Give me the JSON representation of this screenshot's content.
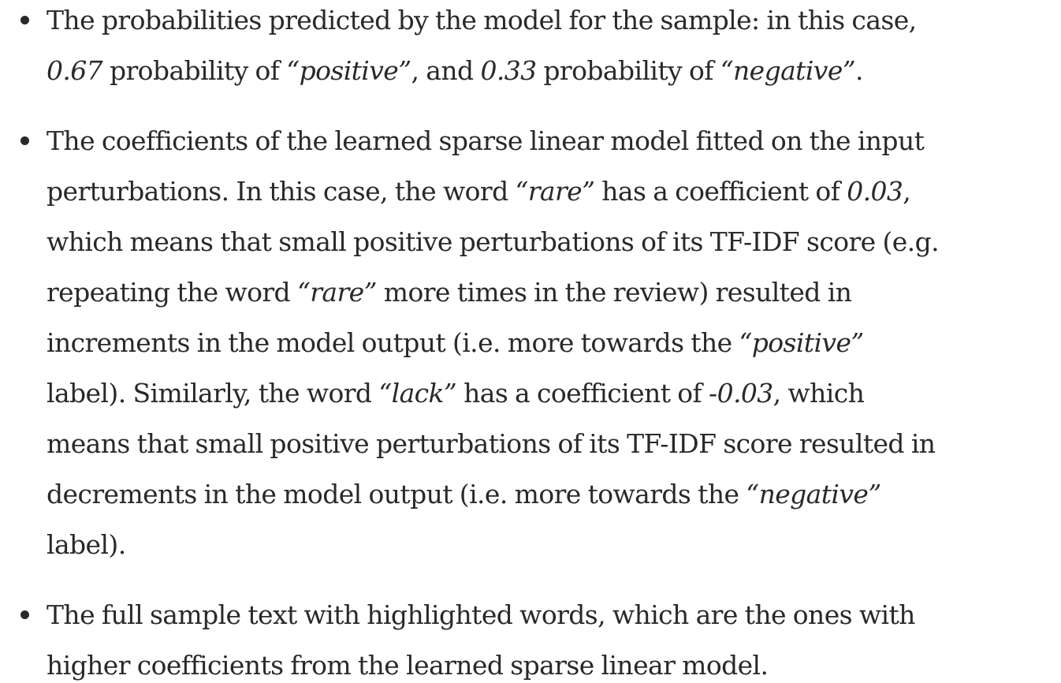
{
  "items": [
    {
      "lines": [
        [
          {
            "t": "The probabilities predicted by the model for the sample: in this case,",
            "i": false
          }
        ],
        [
          {
            "t": "0.67",
            "i": true
          },
          {
            "t": " probability of ",
            "i": false
          },
          {
            "t": "“positive”",
            "i": true
          },
          {
            "t": ", and ",
            "i": false
          },
          {
            "t": "0.33",
            "i": true
          },
          {
            "t": " probability of ",
            "i": false
          },
          {
            "t": "“negative”",
            "i": true
          },
          {
            "t": ".",
            "i": false
          }
        ]
      ]
    },
    {
      "lines": [
        [
          {
            "t": "The coefficients of the learned sparse linear model fitted on the input",
            "i": false
          }
        ],
        [
          {
            "t": "perturbations. In this case, the word ",
            "i": false
          },
          {
            "t": "“rare”",
            "i": true
          },
          {
            "t": " has a coefficient of ",
            "i": false
          },
          {
            "t": "0.03",
            "i": true
          },
          {
            "t": ",",
            "i": false
          }
        ],
        [
          {
            "t": "which means that small positive perturbations of its TF-IDF score (e.g.",
            "i": false
          }
        ],
        [
          {
            "t": "repeating the word ",
            "i": false
          },
          {
            "t": "“rare”",
            "i": true
          },
          {
            "t": " more times in the review) resulted in",
            "i": false
          }
        ],
        [
          {
            "t": "increments in the model output (i.e. more towards the ",
            "i": false
          },
          {
            "t": "“positive”",
            "i": true
          }
        ],
        [
          {
            "t": "label). Similarly, the word ",
            "i": false
          },
          {
            "t": "“lack”",
            "i": true
          },
          {
            "t": " has a coefficient of ",
            "i": false
          },
          {
            "t": "-0.03",
            "i": true
          },
          {
            "t": ", which",
            "i": false
          }
        ],
        [
          {
            "t": "means that small positive perturbations of its TF-IDF score resulted in",
            "i": false
          }
        ],
        [
          {
            "t": "decrements in the model output (i.e. more towards the ",
            "i": false
          },
          {
            "t": "“negative”",
            "i": true
          }
        ],
        [
          {
            "t": "label).",
            "i": false
          }
        ]
      ]
    },
    {
      "lines": [
        [
          {
            "t": "The full sample text with highlighted words, which are the ones with",
            "i": false
          }
        ],
        [
          {
            "t": "higher coefficients from the learned sparse linear model.",
            "i": false
          }
        ]
      ]
    }
  ]
}
